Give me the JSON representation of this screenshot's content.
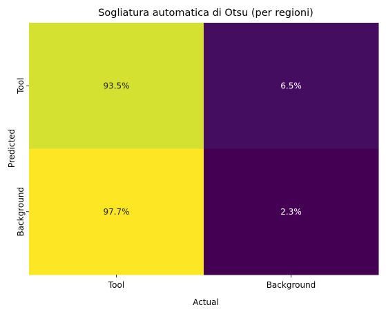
{
  "chart_data": {
    "type": "heatmap",
    "title": "Sogliatura automatica di Otsu (per regioni)",
    "xlabel": "Actual",
    "ylabel": "Predicted",
    "x_categories": [
      "Tool",
      "Background"
    ],
    "y_categories": [
      "Tool",
      "Background"
    ],
    "values": [
      [
        93.5,
        6.5
      ],
      [
        97.7,
        2.3
      ]
    ],
    "cell_labels": [
      [
        "93.5%",
        "6.5%"
      ],
      [
        "97.7%",
        "2.3%"
      ]
    ],
    "colormap": "viridis",
    "color_range": [
      2.3,
      97.7
    ],
    "colorbar": false,
    "grid": false,
    "label_colors": {
      "light_cell": "#262626",
      "dark_cell": "#ffffff"
    }
  }
}
